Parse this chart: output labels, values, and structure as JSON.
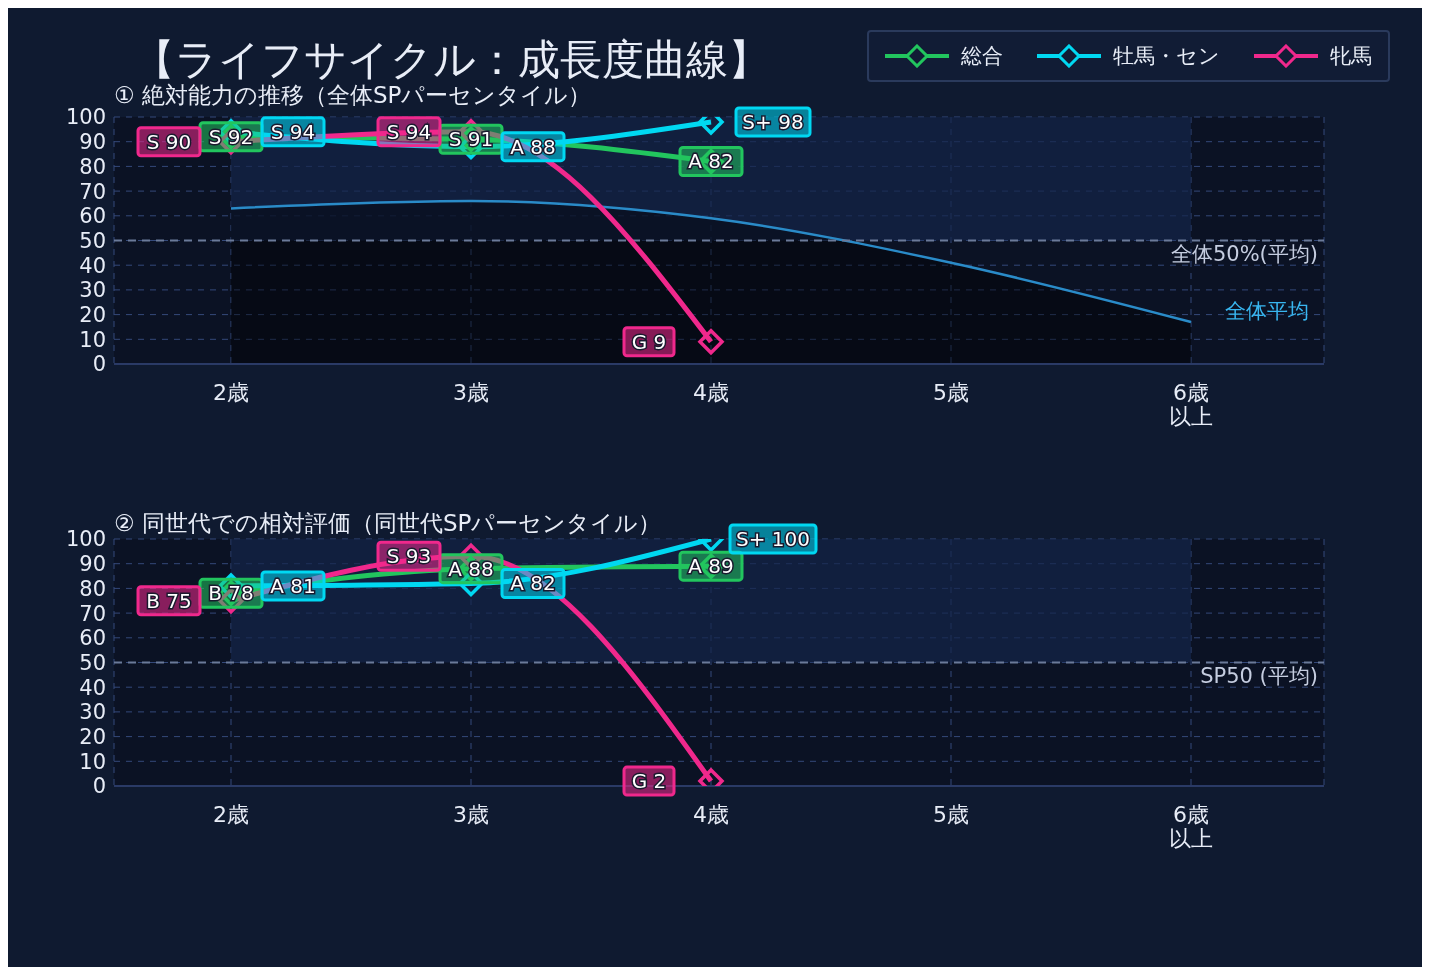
{
  "chart_data": [
    {
      "type": "line",
      "title": "【ライフサイクル：成長度曲線】",
      "subtitle": "① 絶対能力の推移（全体SPパーセンタイル）",
      "categories": [
        "2歳",
        "3歳",
        "4歳",
        "5歳",
        "6歳以上"
      ],
      "series": [
        {
          "name": "総合",
          "color": "#22c55e",
          "values": [
            92,
            91,
            82,
            null,
            null
          ],
          "value_labels": [
            "S 92",
            "S 91",
            "A 82",
            null,
            null
          ]
        },
        {
          "name": "牡馬・セン",
          "color": "#00d8f2",
          "values": [
            94,
            88,
            98,
            null,
            null
          ],
          "value_labels": [
            "S 94",
            "A 88",
            "S+ 98",
            null,
            null
          ]
        },
        {
          "name": "牝馬",
          "color": "#f0288c",
          "values": [
            90,
            94,
            9,
            null,
            null
          ],
          "value_labels": [
            "S 90",
            "S 94",
            "G 9",
            null,
            null
          ]
        },
        {
          "name": "全体平均",
          "type": "area",
          "color": "#2a8bc8",
          "marker": "none",
          "values": [
            63,
            66,
            59,
            41,
            17
          ]
        }
      ],
      "ylim": [
        0,
        100
      ],
      "yticks": [
        0,
        10,
        20,
        30,
        40,
        50,
        60,
        70,
        80,
        90,
        100
      ],
      "grid": true,
      "legend": "top right",
      "marker": "diamond",
      "ref_lines": [
        {
          "axis": "y",
          "value": 50,
          "label": "全体50%(平均)",
          "color": "#6b7a99",
          "line_style": "dashed"
        }
      ],
      "bands": [
        {
          "axis": "y",
          "from": 50,
          "to": 100,
          "color": "#14254a"
        }
      ]
    },
    {
      "type": "line",
      "title": "② 同世代での相対評価（同世代SPパーセンタイル）",
      "categories": [
        "2歳",
        "3歳",
        "4歳",
        "5歳",
        "6歳以上"
      ],
      "series": [
        {
          "color": "#22c55e",
          "values": [
            78,
            88,
            89,
            null,
            null
          ],
          "value_labels": [
            "B 78",
            "A 88",
            "A 89",
            null,
            null
          ]
        },
        {
          "color": "#00d8f2",
          "values": [
            81,
            82,
            100,
            null,
            null
          ],
          "value_labels": [
            "A 81",
            "A 82",
            "S+ 100",
            null,
            null
          ]
        },
        {
          "color": "#f0288c",
          "values": [
            75,
            93,
            2,
            null,
            null
          ],
          "value_labels": [
            "B 75",
            "S 93",
            "G 2",
            null,
            null
          ]
        }
      ],
      "ylim": [
        0,
        100
      ],
      "yticks": [
        0,
        10,
        20,
        30,
        40,
        50,
        60,
        70,
        80,
        90,
        100
      ],
      "grid": true,
      "legend": false,
      "marker": "diamond",
      "ref_lines": [
        {
          "axis": "y",
          "value": 50,
          "label": "SP50 (平均)",
          "color": "#6b7a99",
          "line_style": "dashed"
        }
      ],
      "bands": [
        {
          "axis": "y",
          "from": 50,
          "to": 100,
          "color": "#14254a"
        }
      ]
    }
  ]
}
